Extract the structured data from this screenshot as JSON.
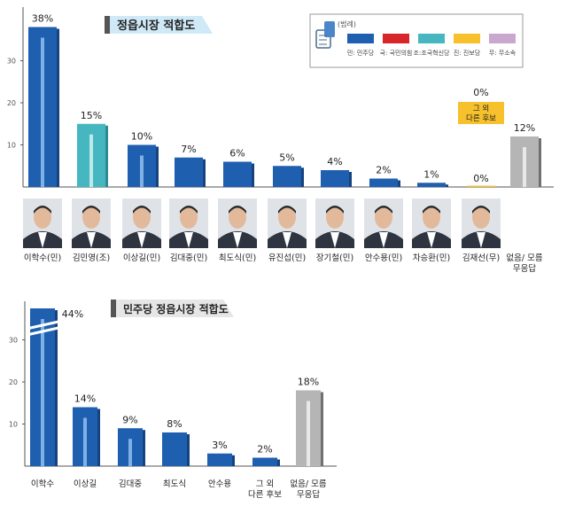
{
  "colors": {
    "min": "#1f5fb0",
    "min_dark": "#16437e",
    "jo": "#46b7c0",
    "jo_dark": "#2f8a92",
    "other": "#f6c12c",
    "none": "#b5b5b5",
    "none_dark": "#707070",
    "title_tag": "#cfe9f7",
    "title_tag2": "#e6e6e6"
  },
  "chart_data": [
    {
      "type": "bar",
      "title": "정읍시장 적합도",
      "legend_label": "(범례)",
      "legend": [
        {
          "key": "min",
          "label": "민: 민주당",
          "color": "#1f5fb0"
        },
        {
          "key": "guk",
          "label": "국: 국민의힘",
          "color": "#d7262a"
        },
        {
          "key": "jo",
          "label": "조:조국혁신당",
          "color": "#46b7c0"
        },
        {
          "key": "jin",
          "label": "진: 진보당",
          "color": "#f6c12c"
        },
        {
          "key": "mu",
          "label": "무: 무소속",
          "color": "#c9a7cf"
        }
      ],
      "yticks": [
        10,
        20,
        30
      ],
      "ylim": [
        0,
        40
      ],
      "categories": [
        "이학수(민)",
        "김민영(조)",
        "이상길(민)",
        "김대중(민)",
        "최도식(민)",
        "유진섭(민)",
        "장기철(민)",
        "안수용(민)",
        "차승환(민)",
        "김재선(무)",
        "그 외 다른 후보",
        "없음/ 모름 무응답"
      ],
      "values": [
        38,
        15,
        10,
        7,
        6,
        5,
        4,
        2,
        1,
        0,
        0,
        12
      ],
      "value_labels": [
        "38%",
        "15%",
        "10%",
        "7%",
        "6%",
        "5%",
        "4%",
        "2%",
        "1%",
        "0%",
        "0%",
        "12%"
      ],
      "bar_kind": [
        "min",
        "jo",
        "min",
        "min",
        "min",
        "min",
        "min",
        "min",
        "min",
        "min",
        "other",
        "none"
      ],
      "callout": "그 외 다른 후보"
    },
    {
      "type": "bar",
      "title": "민주당 정읍시장 적합도",
      "yticks": [
        10,
        20,
        30
      ],
      "ylim": [
        0,
        40
      ],
      "axis_break": true,
      "categories": [
        "이학수",
        "이상길",
        "김대중",
        "최도식",
        "안수용",
        "그 외 다른 후보",
        "없음/ 모름 무응답"
      ],
      "values": [
        44,
        14,
        9,
        8,
        3,
        2,
        18
      ],
      "value_labels": [
        "44%",
        "14%",
        "9%",
        "8%",
        "3%",
        "2%",
        "18%"
      ],
      "bar_kind": [
        "min",
        "min",
        "min",
        "min",
        "min",
        "min",
        "none"
      ]
    }
  ]
}
